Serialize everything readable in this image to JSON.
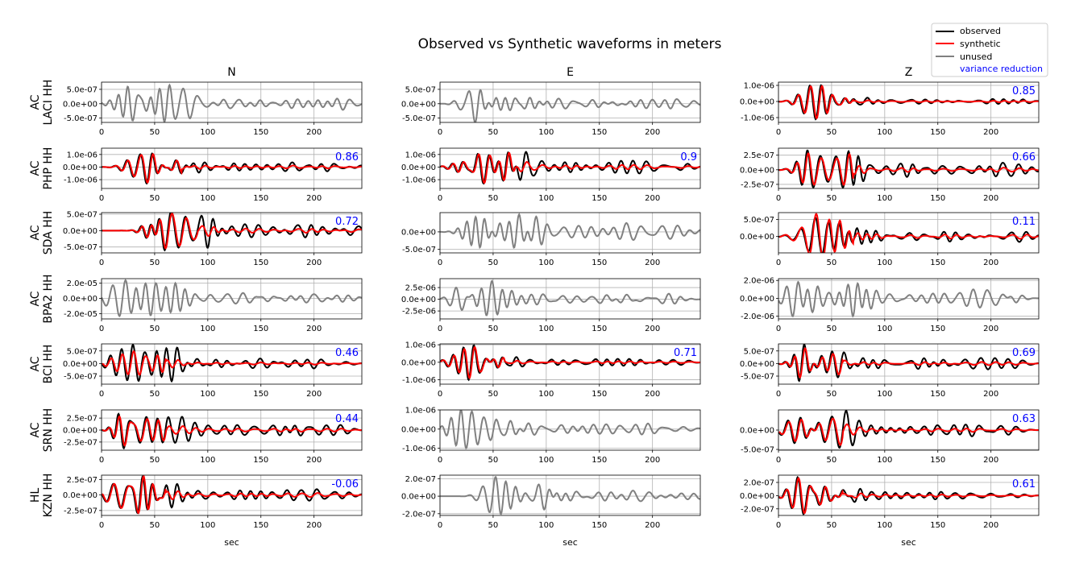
{
  "title": "Observed vs Synthetic waveforms in meters",
  "xlabel": "sec",
  "component_titles": [
    "N",
    "E",
    "Z"
  ],
  "legend": {
    "observed": "observed",
    "synthetic": "synthetic",
    "unused": "unused",
    "variance_reduction": "variance reduction"
  },
  "colors": {
    "observed": "#000000",
    "synthetic": "#ff0000",
    "unused": "#808080",
    "vr": "#0000ff",
    "grid": "#b0b0b0"
  },
  "chart_data": {
    "type": "line",
    "xlim": [
      0,
      245
    ],
    "xticks": [
      0,
      50,
      100,
      150,
      200
    ],
    "grid": true,
    "legend_position": "top-right",
    "stations": [
      {
        "network": "AC",
        "station": "LACI HH",
        "panels": [
          {
            "component": "N",
            "used": false,
            "vr": "",
            "ylim": [
              -6.5e-07,
              7.5e-07
            ],
            "yticks": [
              "5.0e-07",
              "0.0e+00",
              "-5.0e-07"
            ],
            "ytick_values": [
              5e-07,
              0,
              -5e-07
            ],
            "onset": 15,
            "amp": 6.5e-07,
            "scale": 1.0
          },
          {
            "component": "E",
            "used": false,
            "vr": "",
            "ylim": [
              -6.5e-07,
              7.5e-07
            ],
            "yticks": [
              "5.0e-07",
              "0.0e+00",
              "-5.0e-07"
            ],
            "ytick_values": [
              5e-07,
              0,
              -5e-07
            ],
            "onset": 15,
            "amp": 6.5e-07,
            "scale": 1.0
          },
          {
            "component": "Z",
            "used": true,
            "vr": "0.85",
            "ylim": [
              -1.3e-06,
              1.2e-06
            ],
            "yticks": [
              "1.0e-06",
              "0.0e+00",
              "-1.0e-06"
            ],
            "ytick_values": [
              1e-06,
              0,
              -1e-06
            ],
            "onset": 15,
            "amp": 1.1e-06,
            "scale": 0.95
          }
        ]
      },
      {
        "network": "AC",
        "station": "PHP HH",
        "panels": [
          {
            "component": "N",
            "used": true,
            "vr": "0.86",
            "ylim": [
              -1.7e-06,
              1.5e-06
            ],
            "yticks": [
              "1.0e-06",
              "0.0e+00",
              "-1.0e-06"
            ],
            "ytick_values": [
              1e-06,
              0,
              -1e-06
            ],
            "onset": 20,
            "amp": 1.3e-06,
            "scale": 0.95
          },
          {
            "component": "E",
            "used": true,
            "vr": "0.9",
            "ylim": [
              -1.7e-06,
              1.5e-06
            ],
            "yticks": [
              "1.0e-06",
              "0.0e+00",
              "-1.0e-06"
            ],
            "ytick_values": [
              1e-06,
              0,
              -1e-06
            ],
            "onset": 15,
            "amp": 1.3e-06,
            "scale": 0.97
          },
          {
            "component": "Z",
            "used": true,
            "vr": "0.66",
            "ylim": [
              -3.2e-07,
              3.7e-07
            ],
            "yticks": [
              "2.5e-07",
              "0.0e+00",
              "-2.5e-07"
            ],
            "ytick_values": [
              2.5e-07,
              0,
              -2.5e-07
            ],
            "onset": 15,
            "amp": 3.3e-07,
            "scale": 0.85
          }
        ]
      },
      {
        "network": "AC",
        "station": "SDA HH",
        "panels": [
          {
            "component": "N",
            "used": true,
            "vr": "0.72",
            "ylim": [
              -6.8e-07,
              5.5e-07
            ],
            "yticks": [
              "5.0e-07",
              "0.0e+00",
              "-5.0e-07"
            ],
            "ytick_values": [
              5e-07,
              0,
              -5e-07
            ],
            "onset": 35,
            "amp": 6e-07,
            "scale": 0.9
          },
          {
            "component": "E",
            "used": false,
            "vr": "",
            "ylim": [
              -6e-07,
              5.5e-07
            ],
            "yticks": [
              "0.0e+00",
              "-5.0e-07"
            ],
            "ytick_values": [
              0,
              -5e-07
            ],
            "onset": 20,
            "amp": 5e-07,
            "scale": 1.0
          },
          {
            "component": "Z",
            "used": true,
            "vr": "0.11",
            "ylim": [
              -4.8e-07,
              7e-07
            ],
            "yticks": [
              "5.0e-07",
              "0.0e+00"
            ],
            "ytick_values": [
              5e-07,
              0
            ],
            "onset": 15,
            "amp": 5.5e-07,
            "scale": 1.2
          }
        ]
      },
      {
        "network": "AC",
        "station": "BPA2 HH",
        "panels": [
          {
            "component": "N",
            "used": false,
            "vr": "",
            "ylim": [
              -2.7e-05,
              2.6e-05
            ],
            "yticks": [
              "2.0e-05",
              "0.0e+00",
              "-2.0e-05"
            ],
            "ytick_values": [
              2e-05,
              0,
              -2e-05
            ],
            "onset": 5,
            "amp": 2.4e-05,
            "scale": 1.0
          },
          {
            "component": "E",
            "used": false,
            "vr": "",
            "ylim": [
              -4.2e-06,
              4.4e-06
            ],
            "yticks": [
              "2.5e-06",
              "0.0e+00",
              "-2.5e-06"
            ],
            "ytick_values": [
              2.5e-06,
              0,
              -2.5e-06
            ],
            "onset": 5,
            "amp": 3.9e-06,
            "scale": 1.0
          },
          {
            "component": "Z",
            "used": false,
            "vr": "",
            "ylim": [
              -2.3e-06,
              2.2e-06
            ],
            "yticks": [
              "2.0e-06",
              "0.0e+00",
              "-2.0e-06"
            ],
            "ytick_values": [
              2e-06,
              0,
              -2e-06
            ],
            "onset": 5,
            "amp": 2e-06,
            "scale": 1.0
          }
        ]
      },
      {
        "network": "AC",
        "station": "BCI HH",
        "panels": [
          {
            "component": "N",
            "used": true,
            "vr": "0.46",
            "ylim": [
              -8.2e-07,
              7.8e-07
            ],
            "yticks": [
              "5.0e-07",
              "0.0e+00",
              "-5.0e-07"
            ],
            "ytick_values": [
              5e-07,
              0,
              -5e-07
            ],
            "onset": 5,
            "amp": 7.5e-07,
            "scale": 0.65
          },
          {
            "component": "E",
            "used": true,
            "vr": "0.71",
            "ylim": [
              -1.25e-06,
              1.05e-06
            ],
            "yticks": [
              "1.0e-06",
              "0.0e+00",
              "-1.0e-06"
            ],
            "ytick_values": [
              1e-06,
              0,
              -1e-06
            ],
            "onset": 5,
            "amp": 1e-06,
            "scale": 0.9
          },
          {
            "component": "Z",
            "used": true,
            "vr": "0.69",
            "ylim": [
              -8.2e-07,
              7.8e-07
            ],
            "yticks": [
              "5.0e-07",
              "0.0e+00",
              "-5.0e-07"
            ],
            "ytick_values": [
              5e-07,
              0,
              -5e-07
            ],
            "onset": 5,
            "amp": 7.5e-07,
            "scale": 0.8
          }
        ]
      },
      {
        "network": "AC",
        "station": "SRN HH",
        "panels": [
          {
            "component": "N",
            "used": true,
            "vr": "0.44",
            "ylim": [
              -4.2e-07,
              4.2e-07
            ],
            "yticks": [
              "2.5e-07",
              "0.0e+00",
              "-2.5e-07"
            ],
            "ytick_values": [
              2.5e-07,
              0,
              -2.5e-07
            ],
            "onset": 5,
            "amp": 3.8e-07,
            "scale": 0.85
          },
          {
            "component": "E",
            "used": false,
            "vr": "",
            "ylim": [
              -1.1e-06,
              1e-06
            ],
            "yticks": [
              "1.0e-06",
              "0.0e+00",
              "-1.0e-06"
            ],
            "ytick_values": [
              1e-06,
              0,
              -1e-06
            ],
            "onset": 5,
            "amp": 1e-06,
            "scale": 1.0
          },
          {
            "component": "Z",
            "used": true,
            "vr": "0.63",
            "ylim": [
              -5.2e-07,
              5.2e-07
            ],
            "yticks": [
              "0.0e+00",
              "-5.0e-07"
            ],
            "ytick_values": [
              0,
              -5e-07
            ],
            "onset": 5,
            "amp": 5e-07,
            "scale": 0.85
          }
        ]
      },
      {
        "network": "HL",
        "station": "KZN HH",
        "panels": [
          {
            "component": "N",
            "used": true,
            "vr": "-0.06",
            "ylim": [
              -3.3e-07,
              3.2e-07
            ],
            "yticks": [
              "2.5e-07",
              "0.0e+00",
              "-2.5e-07"
            ],
            "ytick_values": [
              2.5e-07,
              0,
              -2.5e-07
            ],
            "onset": 5,
            "amp": 3e-07,
            "scale": 1.0
          },
          {
            "component": "E",
            "used": false,
            "vr": "",
            "ylim": [
              -2.2e-07,
              2.4e-07
            ],
            "yticks": [
              "2.0e-07",
              "0.0e+00",
              "-2.0e-07"
            ],
            "ytick_values": [
              2e-07,
              0,
              -2e-07
            ],
            "onset": 30,
            "amp": 2.2e-07,
            "scale": 1.0
          },
          {
            "component": "Z",
            "used": true,
            "vr": "0.61",
            "ylim": [
              -3e-07,
              3.1e-07
            ],
            "yticks": [
              "2.0e-07",
              "0.0e+00",
              "-2.0e-07"
            ],
            "ytick_values": [
              2e-07,
              0,
              -2e-07
            ],
            "onset": 5,
            "amp": 2.8e-07,
            "scale": 0.95
          }
        ]
      }
    ]
  }
}
